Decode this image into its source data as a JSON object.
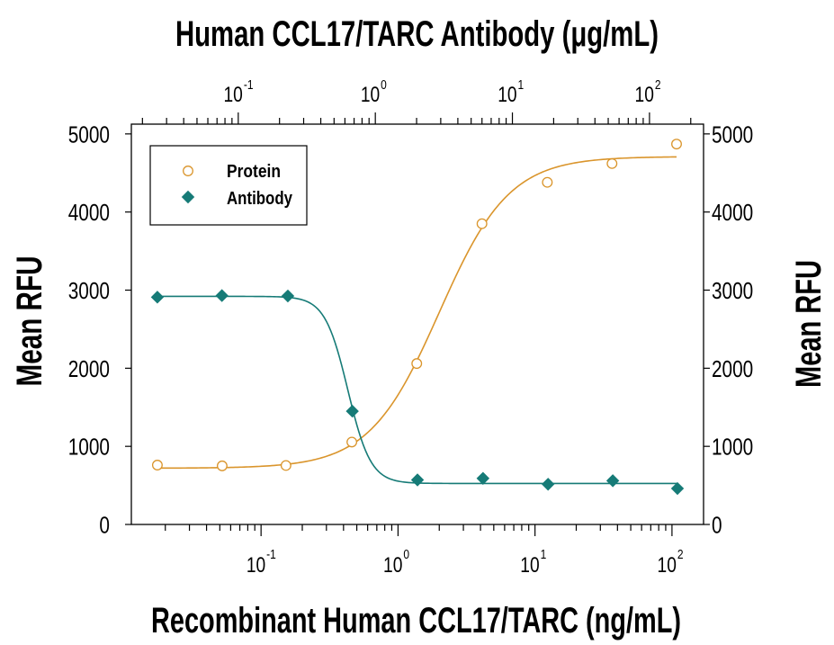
{
  "chart_data": {
    "type": "scatter",
    "x_label": "Recombinant Human CCL17/TARC (ng/mL)",
    "x2_label": "Human CCL17/TARC Antibody (μg/mL)",
    "y_label": "Mean RFU",
    "y2_label": "Mean RFU",
    "x_scale": "log",
    "x2_scale": "log",
    "xlim": [
      0.0113,
      170
    ],
    "x2lim": [
      0.0166,
      248
    ],
    "ylim": [
      0,
      5125
    ],
    "grid": false,
    "x_ticks": [
      {
        "value": 0.1,
        "base": "10",
        "exp": "-1"
      },
      {
        "value": 1,
        "base": "10",
        "exp": "0"
      },
      {
        "value": 10,
        "base": "10",
        "exp": "1"
      },
      {
        "value": 100,
        "base": "10",
        "exp": "2"
      }
    ],
    "x2_ticks": [
      {
        "value": 0.1,
        "base": "10",
        "exp": "-1"
      },
      {
        "value": 1,
        "base": "10",
        "exp": "0"
      },
      {
        "value": 10,
        "base": "10",
        "exp": "1"
      },
      {
        "value": 100,
        "base": "10",
        "exp": "2"
      }
    ],
    "y_ticks": [
      {
        "value": 0,
        "label": "0"
      },
      {
        "value": 1000,
        "label": "1000"
      },
      {
        "value": 2000,
        "label": "2000"
      },
      {
        "value": 3000,
        "label": "3000"
      },
      {
        "value": 4000,
        "label": "4000"
      },
      {
        "value": 5000,
        "label": "5000"
      }
    ],
    "legend": {
      "position": "top-left"
    },
    "series": [
      {
        "name": "Protein",
        "x_axis": "bottom",
        "marker": "open-circle",
        "color": "#DA952C",
        "x": [
          0.0175,
          0.052,
          0.152,
          0.46,
          1.37,
          4.1,
          12.3,
          36.5,
          108
        ],
        "y": [
          760,
          750,
          755,
          1055,
          2060,
          3850,
          4380,
          4620,
          4870
        ],
        "fit": {
          "bottom": 720,
          "top": 4710,
          "ec50": 2.0,
          "hill": 1.7
        }
      },
      {
        "name": "Antibody",
        "x_axis": "top",
        "marker": "filled-diamond",
        "color": "#167B77",
        "x": [
          0.0257,
          0.076,
          0.23,
          0.68,
          2.03,
          6.1,
          18.2,
          54,
          160
        ],
        "y": [
          2910,
          2930,
          2925,
          1450,
          570,
          590,
          515,
          560,
          460
        ],
        "fit": {
          "bottom": 525,
          "top": 2920,
          "ec50": 0.63,
          "hill": -5.2
        }
      }
    ]
  }
}
